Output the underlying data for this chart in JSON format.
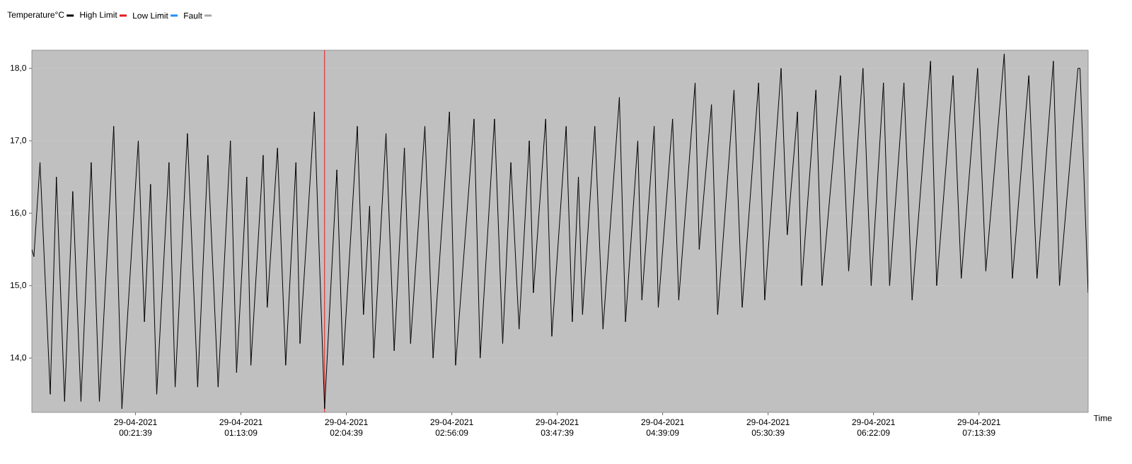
{
  "chart_data": {
    "type": "line",
    "xlabel": "Time",
    "legend": "top left",
    "grid": "y",
    "x": [
      "2021-04-28T23:31",
      "2021-04-28T23:32",
      "2021-04-28T23:35",
      "2021-04-28T23:40",
      "2021-04-28T23:43",
      "2021-04-28T23:47",
      "2021-04-28T23:51",
      "2021-04-28T23:55",
      "2021-04-29T00:00",
      "2021-04-29T00:04",
      "2021-04-29T00:11",
      "2021-04-29T00:15",
      "2021-04-29T00:23",
      "2021-04-29T00:26",
      "2021-04-29T00:29",
      "2021-04-29T00:32",
      "2021-04-29T00:38",
      "2021-04-29T00:41",
      "2021-04-29T00:47",
      "2021-04-29T00:52",
      "2021-04-29T00:57",
      "2021-04-29T01:02",
      "2021-04-29T01:08",
      "2021-04-29T01:11",
      "2021-04-29T01:16",
      "2021-04-29T01:18",
      "2021-04-29T01:24",
      "2021-04-29T01:26",
      "2021-04-29T01:31",
      "2021-04-29T01:35",
      "2021-04-29T01:40",
      "2021-04-29T01:42",
      "2021-04-29T01:49",
      "2021-04-29T01:54",
      "2021-04-29T02:00",
      "2021-04-29T02:03",
      "2021-04-29T02:10",
      "2021-04-29T02:13",
      "2021-04-29T02:16",
      "2021-04-29T02:18",
      "2021-04-29T02:24",
      "2021-04-29T02:28",
      "2021-04-29T02:33",
      "2021-04-29T02:36",
      "2021-04-29T02:43",
      "2021-04-29T02:47",
      "2021-04-29T02:55",
      "2021-04-29T02:58",
      "2021-04-29T03:07",
      "2021-04-29T03:10",
      "2021-04-29T03:17",
      "2021-04-29T03:21",
      "2021-04-29T03:25",
      "2021-04-29T03:29",
      "2021-04-29T03:34",
      "2021-04-29T03:36",
      "2021-04-29T03:42",
      "2021-04-29T03:45",
      "2021-04-29T03:52",
      "2021-04-29T03:55",
      "2021-04-29T03:58",
      "2021-04-29T04:00",
      "2021-04-29T04:06",
      "2021-04-29T04:10",
      "2021-04-29T04:18",
      "2021-04-29T04:21",
      "2021-04-29T04:27",
      "2021-04-29T04:29",
      "2021-04-29T04:35",
      "2021-04-29T04:37",
      "2021-04-29T04:44",
      "2021-04-29T04:47",
      "2021-04-29T04:55",
      "2021-04-29T04:57",
      "2021-04-29T05:03",
      "2021-04-29T05:06",
      "2021-04-29T05:14",
      "2021-04-29T05:18",
      "2021-04-29T05:26",
      "2021-04-29T05:29",
      "2021-04-29T05:37",
      "2021-04-29T05:40",
      "2021-04-29T05:45",
      "2021-04-29T05:47",
      "2021-04-29T05:54",
      "2021-04-29T05:57",
      "2021-04-29T06:06",
      "2021-04-29T06:10",
      "2021-04-29T06:17",
      "2021-04-29T06:21",
      "2021-04-29T06:27",
      "2021-04-29T06:30",
      "2021-04-29T06:37",
      "2021-04-29T06:41",
      "2021-04-29T06:50",
      "2021-04-29T06:53",
      "2021-04-29T07:01",
      "2021-04-29T07:05",
      "2021-04-29T07:13",
      "2021-04-29T07:17",
      "2021-04-29T07:26",
      "2021-04-29T07:30",
      "2021-04-29T07:38",
      "2021-04-29T07:42",
      "2021-04-29T07:50",
      "2021-04-29T07:53",
      "2021-04-29T08:02",
      "2021-04-29T08:03",
      "2021-04-29T08:07"
    ],
    "series": [
      {
        "name": "Temperature°C",
        "color": "#000000",
        "values": [
          15.5,
          15.4,
          16.7,
          13.5,
          16.5,
          13.4,
          16.3,
          13.4,
          16.7,
          13.4,
          17.2,
          13.3,
          17.0,
          14.5,
          16.4,
          13.5,
          16.7,
          13.6,
          17.1,
          13.6,
          16.8,
          13.6,
          17.0,
          13.8,
          16.5,
          13.9,
          16.8,
          14.7,
          16.9,
          13.9,
          16.7,
          14.2,
          17.4,
          13.3,
          16.6,
          13.9,
          17.2,
          14.6,
          16.1,
          14.0,
          17.1,
          14.1,
          16.9,
          14.2,
          17.2,
          14.0,
          17.4,
          13.9,
          17.3,
          14.0,
          17.3,
          14.2,
          16.7,
          14.4,
          17.0,
          14.9,
          17.3,
          14.3,
          17.2,
          14.5,
          16.5,
          14.6,
          17.2,
          14.4,
          17.6,
          14.5,
          17.0,
          14.8,
          17.2,
          14.7,
          17.3,
          14.8,
          17.8,
          15.5,
          17.5,
          14.6,
          17.7,
          14.7,
          17.8,
          14.8,
          18.0,
          15.7,
          17.4,
          15.0,
          17.7,
          15.0,
          17.9,
          15.2,
          18.0,
          15.0,
          17.8,
          15.0,
          17.8,
          14.8,
          18.1,
          15.0,
          17.9,
          15.1,
          18.0,
          15.2,
          18.2,
          15.1,
          17.9,
          15.1,
          18.1,
          15.0,
          18.0,
          18.0,
          14.9
        ]
      },
      {
        "name": "High Limit",
        "color": "#e8191c",
        "values": [
          null,
          null,
          null,
          null,
          null,
          null,
          null,
          null,
          null,
          null,
          null,
          null,
          null,
          null,
          null,
          null,
          null,
          null,
          null,
          null,
          null,
          null,
          null,
          null,
          null,
          null,
          null,
          null,
          null,
          null,
          null,
          null,
          null,
          null,
          null,
          null,
          null,
          null,
          null,
          null,
          null,
          null,
          null,
          null,
          null,
          null,
          null,
          null,
          null,
          null,
          null,
          null,
          null,
          null,
          null,
          null,
          null,
          null,
          null,
          null,
          null,
          null,
          null,
          null,
          null,
          null,
          null,
          null,
          null,
          null,
          null,
          null,
          null,
          null,
          null,
          null,
          null,
          null,
          null,
          null,
          null,
          null,
          null,
          null,
          null,
          null,
          null,
          null,
          null,
          null,
          null,
          null,
          null,
          null,
          null,
          null,
          null,
          null,
          null,
          null,
          null,
          null,
          null,
          null,
          null,
          null,
          null,
          null,
          null
        ]
      },
      {
        "name": "Low Limit",
        "color": "#1e90ff",
        "values": [
          null,
          null,
          null,
          null,
          null,
          null,
          null,
          null,
          null,
          null,
          null,
          null,
          null,
          null,
          null,
          null,
          null,
          null,
          null,
          null,
          null,
          null,
          null,
          null,
          null,
          null,
          null,
          null,
          null,
          null,
          null,
          null,
          null,
          null,
          null,
          null,
          null,
          null,
          null,
          null,
          null,
          null,
          null,
          null,
          null,
          null,
          null,
          null,
          null,
          null,
          null,
          null,
          null,
          null,
          null,
          null,
          null,
          null,
          null,
          null,
          null,
          null,
          null,
          null,
          null,
          null,
          null,
          null,
          null,
          null,
          null,
          null,
          null,
          null,
          null,
          null,
          null,
          null,
          null,
          null,
          null,
          null,
          null,
          null,
          null,
          null,
          null,
          null,
          null,
          null,
          null,
          null,
          null,
          null,
          null,
          null,
          null,
          null,
          null,
          null,
          null,
          null,
          null,
          null,
          null,
          null,
          null,
          null,
          null
        ]
      },
      {
        "name": "Fault",
        "color": "#a9a9a9",
        "values": [
          null,
          null,
          null,
          null,
          null,
          null,
          null,
          null,
          null,
          null,
          null,
          null,
          null,
          null,
          null,
          null,
          null,
          null,
          null,
          null,
          null,
          null,
          null,
          null,
          null,
          null,
          null,
          null,
          null,
          null,
          null,
          null,
          null,
          null,
          null,
          null,
          null,
          null,
          null,
          null,
          null,
          null,
          null,
          null,
          null,
          null,
          null,
          null,
          null,
          null,
          null,
          null,
          null,
          null,
          null,
          null,
          null,
          null,
          null,
          null,
          null,
          null,
          null,
          null,
          null,
          null,
          null,
          null,
          null,
          null,
          null,
          null,
          null,
          null,
          null,
          null,
          null,
          null,
          null,
          null,
          null,
          null,
          null,
          null,
          null,
          null,
          null,
          null,
          null,
          null,
          null,
          null,
          null,
          null,
          null,
          null,
          null,
          null,
          null,
          null,
          null,
          null,
          null,
          null,
          null,
          null,
          null,
          null,
          null
        ]
      }
    ],
    "xlim": [
      "2021-04-28T23:31",
      "2021-04-29T08:07"
    ],
    "ylim": [
      13.25,
      18.25
    ],
    "xticks": [
      {
        "value": "2021-04-29T00:21:39",
        "label": "29-04-2021 00:21:39"
      },
      {
        "value": "2021-04-29T01:13:09",
        "label": "29-04-2021 01:13:09"
      },
      {
        "value": "2021-04-29T02:04:39",
        "label": "29-04-2021 02:04:39"
      },
      {
        "value": "2021-04-29T02:56:09",
        "label": "29-04-2021 02:56:09"
      },
      {
        "value": "2021-04-29T03:47:39",
        "label": "29-04-2021 03:47:39"
      },
      {
        "value": "2021-04-29T04:39:09",
        "label": "29-04-2021 04:39:09"
      },
      {
        "value": "2021-04-29T05:30:39",
        "label": "29-04-2021 05:30:39"
      },
      {
        "value": "2021-04-29T06:22:09",
        "label": "29-04-2021 06:22:09"
      },
      {
        "value": "2021-04-29T07:13:39",
        "label": "29-04-2021 07:13:39"
      }
    ],
    "yticks": [
      {
        "value": 14,
        "label": "14,0"
      },
      {
        "value": 15,
        "label": "15,0"
      },
      {
        "value": 16,
        "label": "16,0"
      },
      {
        "value": 17,
        "label": "17,0"
      },
      {
        "value": 18,
        "label": "18,0"
      }
    ],
    "ref_lines": [
      {
        "axis": "x",
        "value": "2021-04-29T01:54",
        "color": "#e8191c"
      }
    ]
  }
}
